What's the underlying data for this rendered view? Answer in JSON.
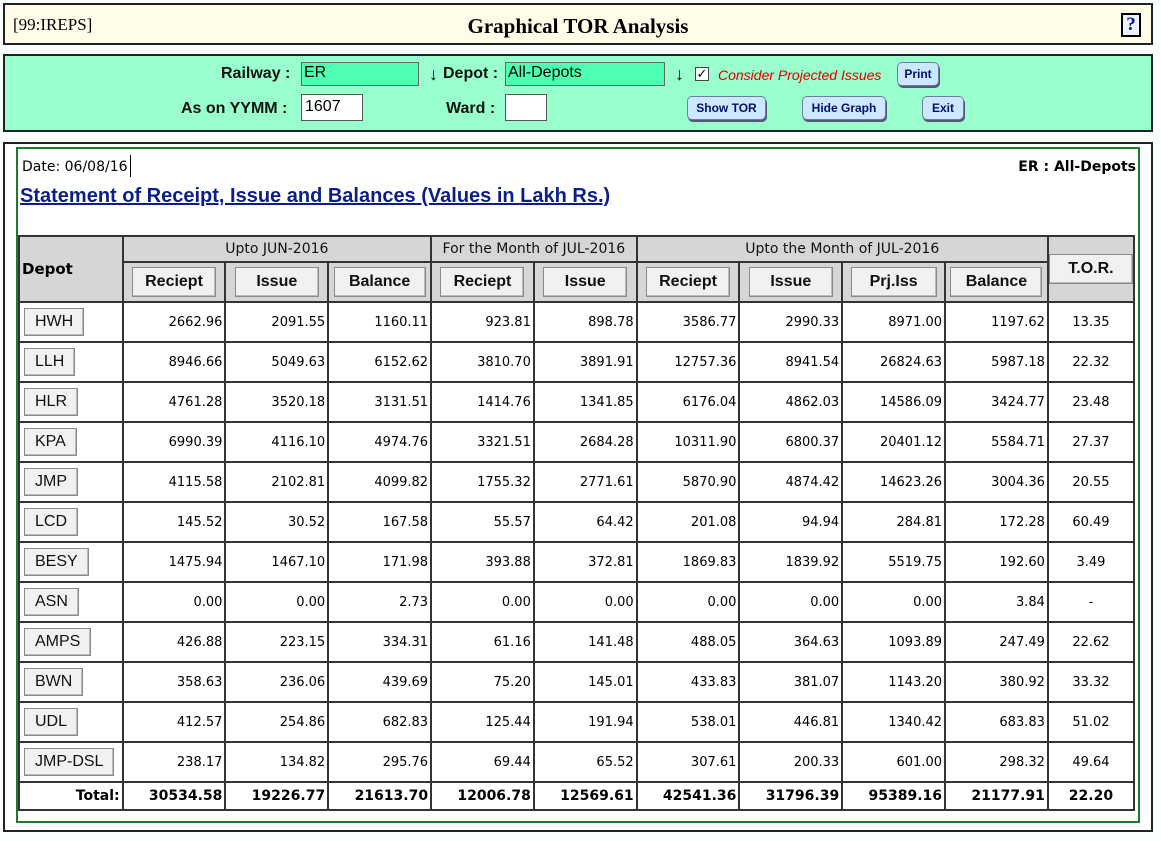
{
  "app_tag": "[99:IREPS]",
  "page_title": "Graphical TOR Analysis",
  "help_label": "?",
  "filters": {
    "railway_label": "Railway :",
    "railway_value": "ER",
    "depot_label": "Depot :",
    "depot_value": "All-Depots",
    "dropdown_arrow": "↓",
    "projected_checked": "✓",
    "projected_label": "Consider Projected Issues",
    "asonyymm_label": "As on YYMM :",
    "asonyymm_value": "1607",
    "ward_label": "Ward :",
    "ward_value": "",
    "print_label": "Print",
    "show_tor_label": "Show TOR",
    "hide_graph_label": "Hide Graph",
    "exit_label": "Exit"
  },
  "report": {
    "date": "Date: 06/08/16",
    "scope": "ER : All-Depots",
    "title": "Statement of Receipt, Issue and Balances (Values in Lakh Rs.)",
    "depot_header": "Depot",
    "groups": [
      "Upto JUN-2016",
      "For the Month of JUL-2016",
      "Upto the Month of JUL-2016"
    ],
    "subheaders": [
      "Reciept",
      "Issue",
      "Balance",
      "Reciept",
      "Issue",
      "Reciept",
      "Issue",
      "Prj.Iss",
      "Balance"
    ],
    "tor_header": "T.O.R.",
    "rows": [
      {
        "depot": "HWH",
        "vals": [
          "2662.96",
          "2091.55",
          "1160.11",
          "923.81",
          "898.78",
          "3586.77",
          "2990.33",
          "8971.00",
          "1197.62"
        ],
        "tor": "13.35"
      },
      {
        "depot": "LLH",
        "vals": [
          "8946.66",
          "5049.63",
          "6152.62",
          "3810.70",
          "3891.91",
          "12757.36",
          "8941.54",
          "26824.63",
          "5987.18"
        ],
        "tor": "22.32"
      },
      {
        "depot": "HLR",
        "vals": [
          "4761.28",
          "3520.18",
          "3131.51",
          "1414.76",
          "1341.85",
          "6176.04",
          "4862.03",
          "14586.09",
          "3424.77"
        ],
        "tor": "23.48"
      },
      {
        "depot": "KPA",
        "vals": [
          "6990.39",
          "4116.10",
          "4974.76",
          "3321.51",
          "2684.28",
          "10311.90",
          "6800.37",
          "20401.12",
          "5584.71"
        ],
        "tor": "27.37"
      },
      {
        "depot": "JMP",
        "vals": [
          "4115.58",
          "2102.81",
          "4099.82",
          "1755.32",
          "2771.61",
          "5870.90",
          "4874.42",
          "14623.26",
          "3004.36"
        ],
        "tor": "20.55"
      },
      {
        "depot": "LCD",
        "vals": [
          "145.52",
          "30.52",
          "167.58",
          "55.57",
          "64.42",
          "201.08",
          "94.94",
          "284.81",
          "172.28"
        ],
        "tor": "60.49"
      },
      {
        "depot": "BESY",
        "vals": [
          "1475.94",
          "1467.10",
          "171.98",
          "393.88",
          "372.81",
          "1869.83",
          "1839.92",
          "5519.75",
          "192.60"
        ],
        "tor": "3.49"
      },
      {
        "depot": "ASN",
        "vals": [
          "0.00",
          "0.00",
          "2.73",
          "0.00",
          "0.00",
          "0.00",
          "0.00",
          "0.00",
          "3.84"
        ],
        "tor": "-"
      },
      {
        "depot": "AMPS",
        "vals": [
          "426.88",
          "223.15",
          "334.31",
          "61.16",
          "141.48",
          "488.05",
          "364.63",
          "1093.89",
          "247.49"
        ],
        "tor": "22.62"
      },
      {
        "depot": "BWN",
        "vals": [
          "358.63",
          "236.06",
          "439.69",
          "75.20",
          "145.01",
          "433.83",
          "381.07",
          "1143.20",
          "380.92"
        ],
        "tor": "33.32"
      },
      {
        "depot": "UDL",
        "vals": [
          "412.57",
          "254.86",
          "682.83",
          "125.44",
          "191.94",
          "538.01",
          "446.81",
          "1340.42",
          "683.83"
        ],
        "tor": "51.02"
      },
      {
        "depot": "JMP-DSL",
        "vals": [
          "238.17",
          "134.82",
          "295.76",
          "69.44",
          "65.52",
          "307.61",
          "200.33",
          "601.00",
          "298.32"
        ],
        "tor": "49.64"
      }
    ],
    "total": {
      "label": "Total:",
      "vals": [
        "30534.58",
        "19226.77",
        "21613.70",
        "12006.78",
        "12569.61",
        "42541.36",
        "31796.39",
        "95389.16",
        "21177.91"
      ],
      "tor": "22.20"
    }
  },
  "colors": {
    "title_bg": "#fffde8",
    "filter_bg": "#99ffcc",
    "select_bg": "#4dffb0",
    "statement_title": "#0b1f8a",
    "projected_label": "#e00000"
  }
}
